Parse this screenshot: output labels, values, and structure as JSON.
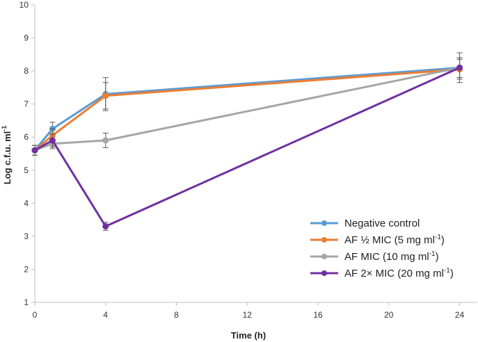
{
  "chart_data": {
    "type": "line",
    "title": "",
    "xlabel": "Time (h)",
    "ylabel": "Log c.f.u. ml",
    "ylabel_superscript": "-1",
    "xlim": [
      0,
      25
    ],
    "ylim": [
      1,
      10
    ],
    "xticks": [
      0,
      4,
      8,
      12,
      16,
      20,
      24
    ],
    "yticks": [
      1,
      2,
      3,
      4,
      5,
      6,
      7,
      8,
      9,
      10
    ],
    "x": [
      0,
      1,
      4,
      24
    ],
    "legend_position": "bottom-right",
    "series": [
      {
        "name": "Negative control",
        "color": "#5B9BD5",
        "values": [
          5.6,
          6.25,
          7.3,
          8.1
        ],
        "errors": [
          0.15,
          0.2,
          0.5,
          0.3
        ]
      },
      {
        "name": "AF ½ MIC (5 mg ml",
        "name_sup": "-1",
        "name_suffix": ")",
        "color": "#ED7D31",
        "values": [
          5.6,
          6.05,
          7.25,
          8.05
        ],
        "errors": [
          0.15,
          0.2,
          0.4,
          0.3
        ]
      },
      {
        "name": "AF MIC (10 mg ml",
        "name_sup": "-1",
        "name_suffix": ")",
        "color": "#A5A5A5",
        "values": [
          5.6,
          5.8,
          5.9,
          8.1
        ],
        "errors": [
          0.15,
          0.15,
          0.22,
          0.45
        ]
      },
      {
        "name": "AF 2× MIC (20 mg ml",
        "name_sup": "-1",
        "name_suffix": ")",
        "color": "#7030A0",
        "values": [
          5.6,
          5.9,
          3.3,
          8.1
        ],
        "errors": [
          0.15,
          0.2,
          0.12,
          0.3
        ]
      }
    ]
  }
}
